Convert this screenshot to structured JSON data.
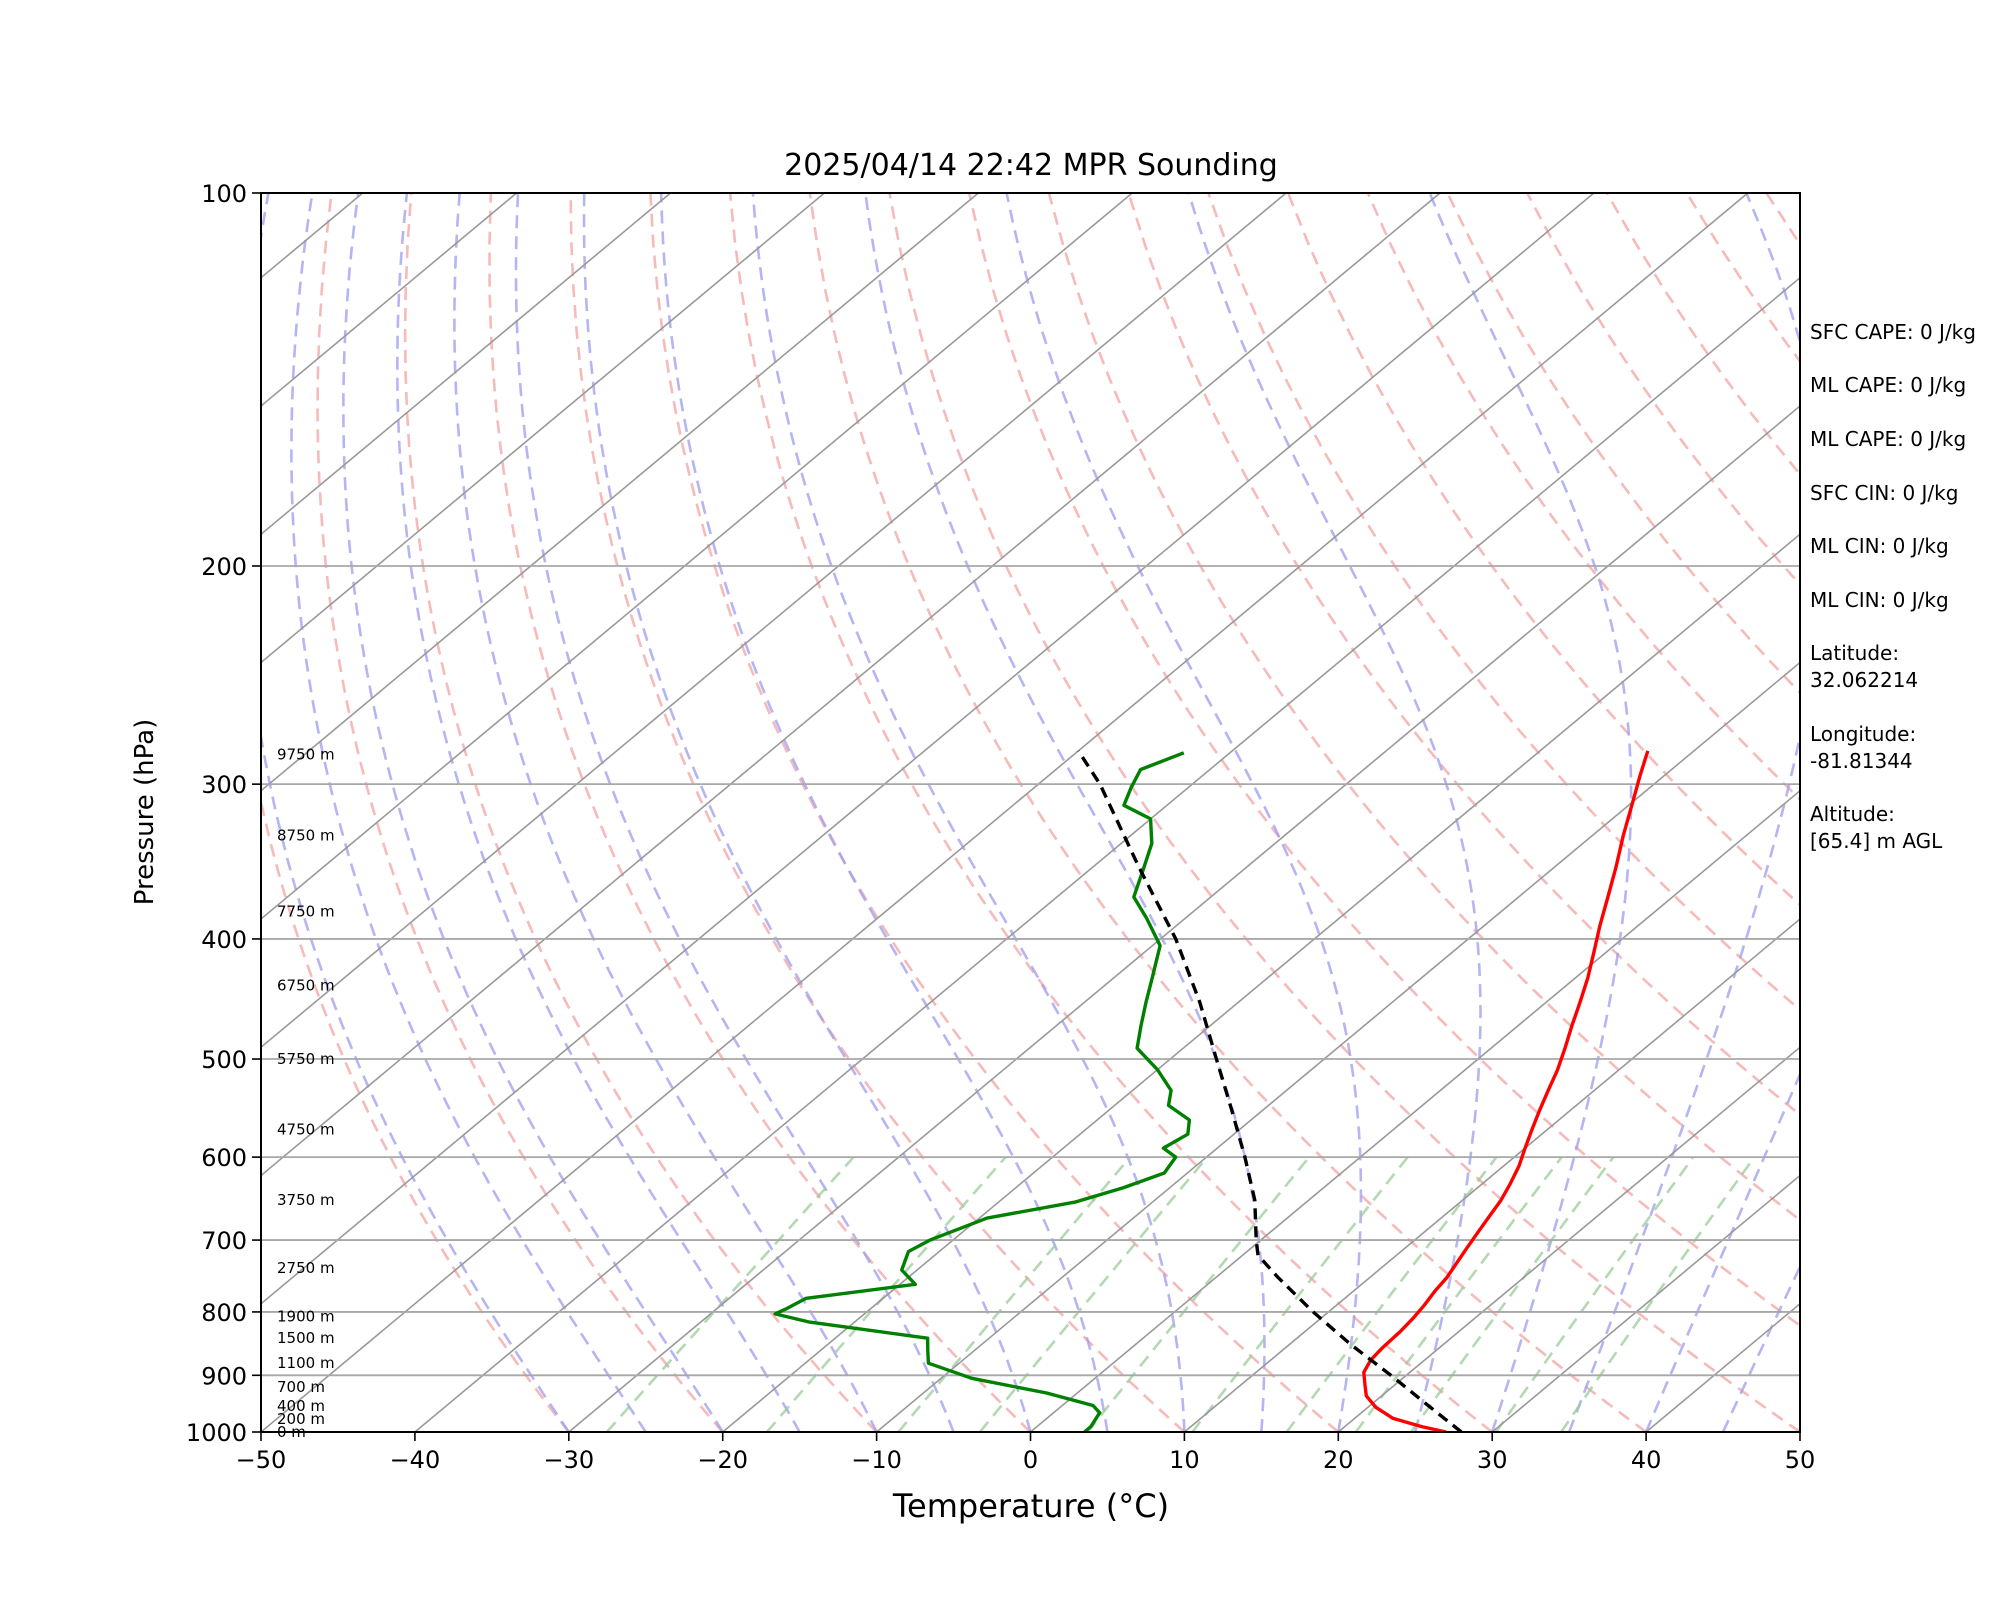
{
  "chart_data": {
    "type": "line",
    "title": "2025/04/14 22:42 MPR Sounding",
    "xlabel": "Temperature (°C)",
    "ylabel": "Pressure (hPa)",
    "xlim": [
      -50,
      50
    ],
    "ylim": [
      1000,
      100
    ],
    "y_scale": "log",
    "grid": true,
    "x_ticks": [
      "−50",
      "−40",
      "−30",
      "−20",
      "−10",
      "0",
      "10",
      "20",
      "30",
      "40",
      "50"
    ],
    "y_ticks": [
      "100",
      "200",
      "300",
      "400",
      "500",
      "600",
      "700",
      "800",
      "900",
      "1000"
    ],
    "colors": {
      "temperature": "#ff0000",
      "dewpoint": "#008000",
      "parcel": "#000000",
      "dry_adiabats": "#f4a3a3",
      "moist_adiabats": "#9c9cf0",
      "mixing_ratio": "#98cc98",
      "isotherms": "#999999"
    },
    "height_labels": [
      {
        "p": 1000,
        "text": "0 m"
      },
      {
        "p": 976,
        "text": "200 m"
      },
      {
        "p": 953,
        "text": "400 m"
      },
      {
        "p": 920,
        "text": "700 m"
      },
      {
        "p": 880,
        "text": "1100 m"
      },
      {
        "p": 840,
        "text": "1500 m"
      },
      {
        "p": 807,
        "text": "1900 m"
      },
      {
        "p": 737,
        "text": "2750 m"
      },
      {
        "p": 650,
        "text": "3750 m"
      },
      {
        "p": 570,
        "text": "4750 m"
      },
      {
        "p": 500,
        "text": "5750 m"
      },
      {
        "p": 436,
        "text": "6750 m"
      },
      {
        "p": 380,
        "text": "7750 m"
      },
      {
        "p": 330,
        "text": "8750 m"
      },
      {
        "p": 284,
        "text": "9750 m"
      }
    ],
    "series": [
      {
        "key": "temperature",
        "points": [
          [
            1000,
            27.0
          ],
          [
            990,
            25.0
          ],
          [
            975,
            22.5
          ],
          [
            955,
            20.5
          ],
          [
            935,
            19.0
          ],
          [
            915,
            18.0
          ],
          [
            895,
            17.0
          ],
          [
            875,
            16.5
          ],
          [
            855,
            16.3
          ],
          [
            830,
            16.2
          ],
          [
            810,
            16.0
          ],
          [
            790,
            15.7
          ],
          [
            770,
            15.3
          ],
          [
            750,
            15.0
          ],
          [
            730,
            14.5
          ],
          [
            710,
            14.0
          ],
          [
            690,
            13.5
          ],
          [
            670,
            13.0
          ],
          [
            650,
            12.5
          ],
          [
            630,
            11.8
          ],
          [
            610,
            11.0
          ],
          [
            590,
            10.0
          ],
          [
            570,
            9.0
          ],
          [
            550,
            8.0
          ],
          [
            530,
            7.0
          ],
          [
            510,
            6.0
          ],
          [
            490,
            4.8
          ],
          [
            470,
            3.5
          ],
          [
            450,
            2.2
          ],
          [
            430,
            0.8
          ],
          [
            410,
            -0.8
          ],
          [
            390,
            -2.5
          ],
          [
            370,
            -4.2
          ],
          [
            350,
            -6.0
          ],
          [
            330,
            -8.0
          ],
          [
            310,
            -10.0
          ],
          [
            295,
            -11.6
          ],
          [
            282,
            -13.0
          ]
        ]
      },
      {
        "key": "dewpoint",
        "points": [
          [
            1000,
            3.5
          ],
          [
            990,
            3.5
          ],
          [
            980,
            3.3
          ],
          [
            965,
            3.0
          ],
          [
            952,
            2.0
          ],
          [
            930,
            -2.0
          ],
          [
            905,
            -8.0
          ],
          [
            880,
            -12.0
          ],
          [
            860,
            -13.0
          ],
          [
            840,
            -14.0
          ],
          [
            815,
            -23.0
          ],
          [
            803,
            -25.8
          ],
          [
            796,
            -25.5
          ],
          [
            780,
            -25.0
          ],
          [
            760,
            -19.0
          ],
          [
            740,
            -21.0
          ],
          [
            715,
            -22.0
          ],
          [
            700,
            -21.5
          ],
          [
            672,
            -19.5
          ],
          [
            652,
            -15.0
          ],
          [
            635,
            -13.0
          ],
          [
            618,
            -11.5
          ],
          [
            600,
            -12.0
          ],
          [
            590,
            -13.5
          ],
          [
            575,
            -13.0
          ],
          [
            560,
            -14.0
          ],
          [
            545,
            -16.5
          ],
          [
            530,
            -17.5
          ],
          [
            510,
            -20.0
          ],
          [
            490,
            -23.0
          ],
          [
            470,
            -24.5
          ],
          [
            450,
            -26.0
          ],
          [
            430,
            -27.5
          ],
          [
            405,
            -29.5
          ],
          [
            385,
            -32.5
          ],
          [
            370,
            -35.0
          ],
          [
            352,
            -36.5
          ],
          [
            335,
            -38.0
          ],
          [
            320,
            -40.0
          ],
          [
            312,
            -42.8
          ],
          [
            302,
            -43.7
          ],
          [
            292,
            -44.5
          ],
          [
            283,
            -43.0
          ]
        ]
      },
      {
        "key": "parcel",
        "points": [
          [
            1000,
            28.0
          ],
          [
            950,
            23.6
          ],
          [
            900,
            19.0
          ],
          [
            850,
            14.0
          ],
          [
            800,
            9.0
          ],
          [
            750,
            4.0
          ],
          [
            720,
            1.0
          ],
          [
            700,
            -0.3
          ],
          [
            650,
            -3.5
          ],
          [
            600,
            -7.5
          ],
          [
            550,
            -12.0
          ],
          [
            500,
            -17.0
          ],
          [
            450,
            -22.5
          ],
          [
            400,
            -29.0
          ],
          [
            350,
            -37.0
          ],
          [
            300,
            -46.0
          ],
          [
            282,
            -50.0
          ]
        ]
      }
    ]
  },
  "stats": {
    "sfc_cape": "SFC CAPE: 0 J/kg",
    "ml_cape_1": "ML CAPE: 0 J/kg",
    "ml_cape_2": "ML CAPE: 0 J/kg",
    "sfc_cin": "SFC CIN: 0 J/kg",
    "ml_cin_1": "ML CIN: 0 J/kg",
    "ml_cin_2": "ML CIN: 0 J/kg",
    "latitude_label": "Latitude:",
    "latitude_value": "32.062214",
    "longitude_label": "Longitude:",
    "longitude_value": "-81.81344",
    "altitude_label": "Altitude:",
    "altitude_value": "[65.4] m AGL"
  }
}
